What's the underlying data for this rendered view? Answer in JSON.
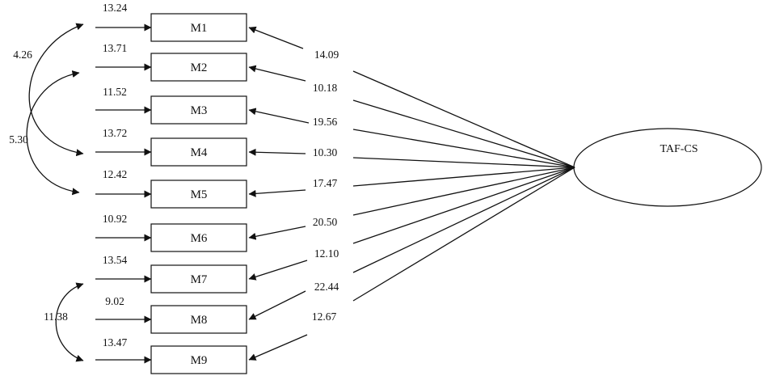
{
  "diagram": {
    "latent": {
      "label": "TAF-CS"
    },
    "items": [
      {
        "label": "M1",
        "error": "13.24",
        "loading": "14.09"
      },
      {
        "label": "M2",
        "error": "13.71",
        "loading": "10.18"
      },
      {
        "label": "M3",
        "error": "11.52",
        "loading": "19.56"
      },
      {
        "label": "M4",
        "error": "13.72",
        "loading": "10.30"
      },
      {
        "label": "M5",
        "error": "12.42",
        "loading": "17.47"
      },
      {
        "label": "M6",
        "error": "10.92",
        "loading": "20.50"
      },
      {
        "label": "M7",
        "error": "13.54",
        "loading": "12.10"
      },
      {
        "label": "M8",
        "error": "9.02",
        "loading": "22.44"
      },
      {
        "label": "M9",
        "error": "13.47",
        "loading": "12.67"
      }
    ],
    "covariances": [
      {
        "from": "M1",
        "to": "M4",
        "value": "4.26"
      },
      {
        "from": "M2",
        "to": "M5",
        "value": "5.30"
      },
      {
        "from": "M7",
        "to": "M9",
        "value": "11.38"
      }
    ]
  }
}
